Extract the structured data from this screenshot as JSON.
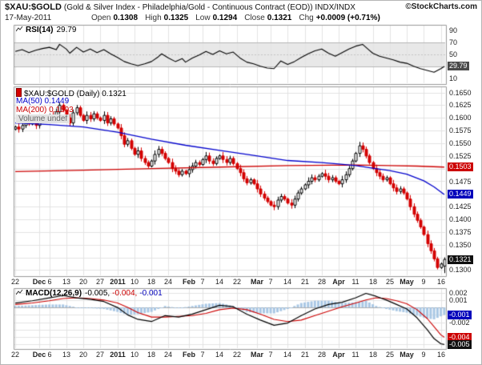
{
  "header": {
    "symbol": "$XAU:$GOLD",
    "description": "(Gold & Silver Index - Philadelphia/Gold - Continuous Contract (EOD)) INDX/INDX",
    "watermark": "©StockCharts.com",
    "date": "17-May-2011",
    "quote": {
      "open_label": "Open",
      "open": "0.1308",
      "high_label": "High",
      "high": "0.1325",
      "low_label": "Low",
      "low": "0.1294",
      "close_label": "Close",
      "close": "0.1321",
      "chg_label": "Chg",
      "chg": "+0.0009 (+0.71%)"
    }
  },
  "rsi_panel": {
    "label": "RSI(14)",
    "value": "29.79",
    "badge": "29.79"
  },
  "main_panel": {
    "legend_title": "$XAU:$GOLD (Daily) 0.1321",
    "ma50_label": "MA(50) 0.1449",
    "ma200_label": "MA(200) 0.1503",
    "volume_label": "Volume undef",
    "badges": {
      "ma200": "0.1503",
      "ma50": "0.1449",
      "close": "0.1321"
    }
  },
  "macd_panel": {
    "label": "MACD(12,26,9)",
    "values": [
      "-0.005,",
      "-0.004,",
      "-0.001"
    ],
    "badges": {
      "macd": "-0.005",
      "signal": "-0.004",
      "hist": "-0.001"
    }
  },
  "colors": {
    "up_candle": "#000000",
    "down_candle": "#d40000",
    "ma50": "#0000cc",
    "ma200": "#cc0000",
    "rsi_line": "#000000",
    "macd_line": "#000000",
    "signal_line": "#cc0000",
    "hist": "#a9c7e4",
    "grid": "#e3e3e3",
    "panel_border": "#999999",
    "band": "#e8e8e8"
  },
  "chart_data": [
    {
      "panel": "rsi",
      "type": "line",
      "title": "RSI(14)",
      "last_value": 29.79,
      "ylim": [
        0,
        100
      ],
      "visible_yticks": [
        90,
        70,
        50,
        10
      ],
      "band": [
        30,
        70
      ],
      "series": [
        {
          "name": "RSI(14)",
          "color": "#000000",
          "points": [
            [
              0,
              55
            ],
            [
              2,
              58
            ],
            [
              4,
              53
            ],
            [
              6,
              57
            ],
            [
              8,
              60
            ],
            [
              10,
              62
            ],
            [
              12,
              58
            ],
            [
              13,
              67
            ],
            [
              15,
              59
            ],
            [
              16,
              52
            ],
            [
              18,
              62
            ],
            [
              20,
              54
            ],
            [
              22,
              59
            ],
            [
              24,
              53
            ],
            [
              26,
              58
            ],
            [
              28,
              51
            ],
            [
              30,
              45
            ],
            [
              32,
              38
            ],
            [
              34,
              34
            ],
            [
              36,
              31
            ],
            [
              38,
              34
            ],
            [
              40,
              38
            ],
            [
              42,
              46
            ],
            [
              43,
              51
            ],
            [
              45,
              44
            ],
            [
              47,
              38
            ],
            [
              49,
              43
            ],
            [
              50,
              37
            ],
            [
              52,
              44
            ],
            [
              54,
              49
            ],
            [
              56,
              55
            ],
            [
              58,
              50
            ],
            [
              60,
              56
            ],
            [
              62,
              51
            ],
            [
              64,
              54
            ],
            [
              66,
              44
            ],
            [
              68,
              37
            ],
            [
              70,
              34
            ],
            [
              72,
              30
            ],
            [
              74,
              27
            ],
            [
              76,
              26
            ],
            [
              78,
              39
            ],
            [
              80,
              33
            ],
            [
              82,
              38
            ],
            [
              84,
              45
            ],
            [
              86,
              51
            ],
            [
              88,
              56
            ],
            [
              90,
              59
            ],
            [
              92,
              52
            ],
            [
              94,
              47
            ],
            [
              96,
              53
            ],
            [
              98,
              59
            ],
            [
              100,
              64
            ],
            [
              102,
              67
            ],
            [
              104,
              57
            ],
            [
              105,
              52
            ],
            [
              107,
              47
            ],
            [
              109,
              44
            ],
            [
              111,
              41
            ],
            [
              113,
              37
            ],
            [
              115,
              35
            ],
            [
              117,
              30
            ],
            [
              119,
              26
            ],
            [
              121,
              23
            ],
            [
              123,
              20
            ],
            [
              124,
              23
            ],
            [
              125,
              26
            ],
            [
              126,
              29.79
            ]
          ]
        }
      ]
    },
    {
      "panel": "price",
      "type": "candlestick",
      "title": "$XAU:$GOLD (Daily)",
      "last_close": 0.1321,
      "n_days": 127,
      "ylim": [
        0.1288,
        0.1662
      ],
      "ytick_step": 0.0025,
      "visible_yticks": [
        0.165,
        0.1625,
        0.16,
        0.1575,
        0.155,
        0.1525,
        0.1475,
        0.1425,
        0.14,
        0.1375,
        0.135,
        0.13
      ],
      "xticks": [
        {
          "l": "22",
          "i": 0
        },
        {
          "l": "Dec",
          "i": 7,
          "b": true
        },
        {
          "l": "6",
          "i": 10
        },
        {
          "l": "13",
          "i": 15
        },
        {
          "l": "20",
          "i": 20
        },
        {
          "l": "27",
          "i": 25
        },
        {
          "l": "2011",
          "i": 30,
          "b": true
        },
        {
          "l": "10",
          "i": 35
        },
        {
          "l": "18",
          "i": 40
        },
        {
          "l": "24",
          "i": 45
        },
        {
          "l": "Feb",
          "i": 51,
          "b": true
        },
        {
          "l": "7",
          "i": 55
        },
        {
          "l": "14",
          "i": 60
        },
        {
          "l": "22",
          "i": 65
        },
        {
          "l": "Mar",
          "i": 71,
          "b": true
        },
        {
          "l": "7",
          "i": 75
        },
        {
          "l": "14",
          "i": 80
        },
        {
          "l": "21",
          "i": 85
        },
        {
          "l": "28",
          "i": 90
        },
        {
          "l": "Apr",
          "i": 95,
          "b": true
        },
        {
          "l": "11",
          "i": 100
        },
        {
          "l": "18",
          "i": 105
        },
        {
          "l": "25",
          "i": 110
        },
        {
          "l": "May",
          "i": 115,
          "b": true
        },
        {
          "l": "9",
          "i": 120
        },
        {
          "l": "16",
          "i": 125
        }
      ],
      "closes": [
        0.1582,
        0.1578,
        0.1585,
        0.159,
        0.1588,
        0.1592,
        0.1585,
        0.1595,
        0.16,
        0.1598,
        0.1605,
        0.1598,
        0.1612,
        0.1625,
        0.1615,
        0.16,
        0.159,
        0.161,
        0.162,
        0.1605,
        0.1595,
        0.1605,
        0.1598,
        0.1608,
        0.16,
        0.1595,
        0.1605,
        0.159,
        0.1598,
        0.1588,
        0.158,
        0.1565,
        0.1548,
        0.1555,
        0.154,
        0.1528,
        0.1535,
        0.152,
        0.1512,
        0.1505,
        0.1515,
        0.1528,
        0.1538,
        0.153,
        0.152,
        0.1512,
        0.15,
        0.1495,
        0.1488,
        0.1495,
        0.149,
        0.1498,
        0.1505,
        0.1512,
        0.1508,
        0.1518,
        0.1525,
        0.1515,
        0.151,
        0.152,
        0.1525,
        0.1518,
        0.1512,
        0.152,
        0.151,
        0.15,
        0.1492,
        0.148,
        0.1472,
        0.1478,
        0.147,
        0.146,
        0.145,
        0.1442,
        0.1435,
        0.1428,
        0.1425,
        0.1438,
        0.1445,
        0.144,
        0.1432,
        0.1428,
        0.144,
        0.1452,
        0.146,
        0.1468,
        0.1475,
        0.1482,
        0.1478,
        0.1485,
        0.149,
        0.1485,
        0.1478,
        0.1482,
        0.1475,
        0.147,
        0.1478,
        0.1488,
        0.15,
        0.1515,
        0.153,
        0.1545,
        0.1538,
        0.1525,
        0.1512,
        0.15,
        0.1492,
        0.1485,
        0.1478,
        0.1482,
        0.147,
        0.1462,
        0.1455,
        0.146,
        0.1452,
        0.144,
        0.1425,
        0.141,
        0.1398,
        0.1385,
        0.137,
        0.1352,
        0.1338,
        0.1322,
        0.1305,
        0.1312,
        0.1321
      ],
      "last_ohlc": {
        "open": 0.1308,
        "high": 0.1325,
        "low": 0.1294,
        "close": 0.1321
      },
      "overlays": [
        {
          "name": "MA(50)",
          "color": "#0000cc",
          "last": 0.1449,
          "points": [
            [
              0,
              0.159
            ],
            [
              10,
              0.1587
            ],
            [
              20,
              0.1582
            ],
            [
              30,
              0.1572
            ],
            [
              40,
              0.1558
            ],
            [
              50,
              0.1546
            ],
            [
              60,
              0.1536
            ],
            [
              70,
              0.1526
            ],
            [
              80,
              0.1516
            ],
            [
              90,
              0.1512
            ],
            [
              95,
              0.1509
            ],
            [
              100,
              0.1506
            ],
            [
              105,
              0.1501
            ],
            [
              110,
              0.1496
            ],
            [
              115,
              0.1489
            ],
            [
              120,
              0.1476
            ],
            [
              123,
              0.1464
            ],
            [
              126,
              0.1449
            ]
          ]
        },
        {
          "name": "MA(200)",
          "color": "#cc0000",
          "last": 0.1503,
          "points": [
            [
              0,
              0.1494
            ],
            [
              20,
              0.1497
            ],
            [
              40,
              0.15
            ],
            [
              60,
              0.1503
            ],
            [
              80,
              0.1506
            ],
            [
              100,
              0.1507
            ],
            [
              110,
              0.1506
            ],
            [
              118,
              0.1505
            ],
            [
              126,
              0.1503
            ]
          ]
        }
      ]
    },
    {
      "panel": "macd",
      "type": "macd",
      "title": "MACD(12,26,9)",
      "last_values": {
        "macd": -0.005,
        "signal": -0.004,
        "hist": -0.001
      },
      "ylim": [
        -0.0056,
        0.0026
      ],
      "ytick_step": 0.001,
      "visible_yticks": [
        0.002,
        0.001,
        -0.002
      ],
      "series": [
        {
          "name": "MACD",
          "color": "#000000",
          "points": [
            [
              0,
              0.0006
            ],
            [
              5,
              0.0009
            ],
            [
              10,
              0.0013
            ],
            [
              14,
              0.0016
            ],
            [
              18,
              0.0013
            ],
            [
              22,
              0.0011
            ],
            [
              26,
              0.0008
            ],
            [
              30,
              0.0
            ],
            [
              33,
              -0.001
            ],
            [
              36,
              -0.0016
            ],
            [
              40,
              -0.0019
            ],
            [
              44,
              -0.0011
            ],
            [
              48,
              -0.0013
            ],
            [
              52,
              -0.0009
            ],
            [
              56,
              -0.0003
            ],
            [
              60,
              0.0003
            ],
            [
              64,
              0.0001
            ],
            [
              68,
              -0.0009
            ],
            [
              72,
              -0.0017
            ],
            [
              76,
              -0.0024
            ],
            [
              80,
              -0.0021
            ],
            [
              84,
              -0.0011
            ],
            [
              88,
              -0.0002
            ],
            [
              92,
              0.0004
            ],
            [
              96,
              0.0007
            ],
            [
              100,
              0.0013
            ],
            [
              103,
              0.0019
            ],
            [
              106,
              0.0015
            ],
            [
              109,
              0.001
            ],
            [
              112,
              0.0004
            ],
            [
              115,
              -0.0002
            ],
            [
              118,
              -0.0014
            ],
            [
              121,
              -0.003
            ],
            [
              123,
              -0.0042
            ],
            [
              125,
              -0.0049
            ],
            [
              126,
              -0.005
            ]
          ]
        },
        {
          "name": "Signal",
          "color": "#cc0000",
          "points": [
            [
              0,
              0.0004
            ],
            [
              5,
              0.0006
            ],
            [
              10,
              0.0009
            ],
            [
              14,
              0.0012
            ],
            [
              18,
              0.0013
            ],
            [
              22,
              0.0012
            ],
            [
              26,
              0.001
            ],
            [
              30,
              0.0006
            ],
            [
              33,
              0.0
            ],
            [
              36,
              -0.0007
            ],
            [
              40,
              -0.0013
            ],
            [
              44,
              -0.0013
            ],
            [
              48,
              -0.0012
            ],
            [
              52,
              -0.0011
            ],
            [
              56,
              -0.0008
            ],
            [
              60,
              -0.0003
            ],
            [
              64,
              -0.0001
            ],
            [
              68,
              -0.0003
            ],
            [
              72,
              -0.0009
            ],
            [
              76,
              -0.0016
            ],
            [
              80,
              -0.0019
            ],
            [
              84,
              -0.0017
            ],
            [
              88,
              -0.0011
            ],
            [
              92,
              -0.0005
            ],
            [
              96,
              0.0001
            ],
            [
              100,
              0.0006
            ],
            [
              103,
              0.001
            ],
            [
              106,
              0.0013
            ],
            [
              109,
              0.0012
            ],
            [
              112,
              0.0009
            ],
            [
              115,
              0.0005
            ],
            [
              118,
              -0.0003
            ],
            [
              121,
              -0.0015
            ],
            [
              123,
              -0.0026
            ],
            [
              125,
              -0.0037
            ],
            [
              126,
              -0.004
            ]
          ]
        }
      ],
      "histogram": {
        "color": "#a9c7e4",
        "derived": "macd_minus_signal"
      }
    }
  ]
}
